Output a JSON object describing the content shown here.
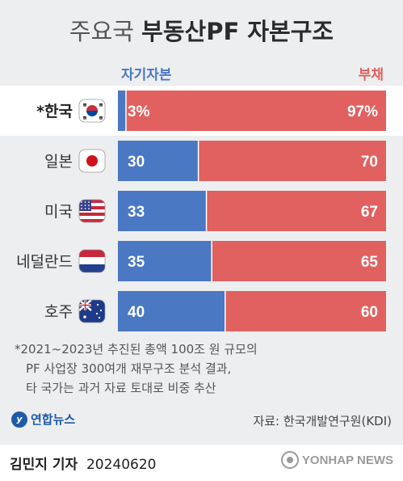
{
  "title": {
    "light": "주요국",
    "bold": "부동산PF 자본구조"
  },
  "chart_data": {
    "type": "bar",
    "stacked": true,
    "orientation": "horizontal",
    "percent_stacked": true,
    "categories": [
      "*한국",
      "일본",
      "미국",
      "네덜란드",
      "호주"
    ],
    "value_labels": [
      [
        "3%",
        "97%"
      ],
      [
        "30",
        "70"
      ],
      [
        "33",
        "67"
      ],
      [
        "35",
        "65"
      ],
      [
        "40",
        "60"
      ]
    ],
    "series": [
      {
        "name": "자기자본",
        "values": [
          3,
          30,
          33,
          35,
          40
        ],
        "color": "#4a78c2"
      },
      {
        "name": "부채",
        "values": [
          97,
          70,
          67,
          65,
          60
        ],
        "color": "#e0615f"
      }
    ],
    "xlim": [
      0,
      100
    ],
    "legend_position": "top",
    "highlight_category": "*한국",
    "flags": [
      "south-korea-flag-icon",
      "japan-flag-icon",
      "usa-flag-icon",
      "netherlands-flag-icon",
      "australia-flag-icon"
    ]
  },
  "note": [
    "*2021~2023년 추진된 총액 100조 원 규모의",
    "PF 사업장 300여개 재무구조 분석 결과,",
    "타 국가는 과거 자료 토대로 비중 추산"
  ],
  "logo_text": "연합뉴스",
  "source": "자료: 한국개발연구원(KDI)",
  "byline": {
    "name": "김민지 기자",
    "date": "20240620"
  },
  "watermark": "YONHAP NEWS",
  "colors": {
    "equity": "#4a78c2",
    "debt": "#e0615f",
    "background": "#edeef0"
  }
}
